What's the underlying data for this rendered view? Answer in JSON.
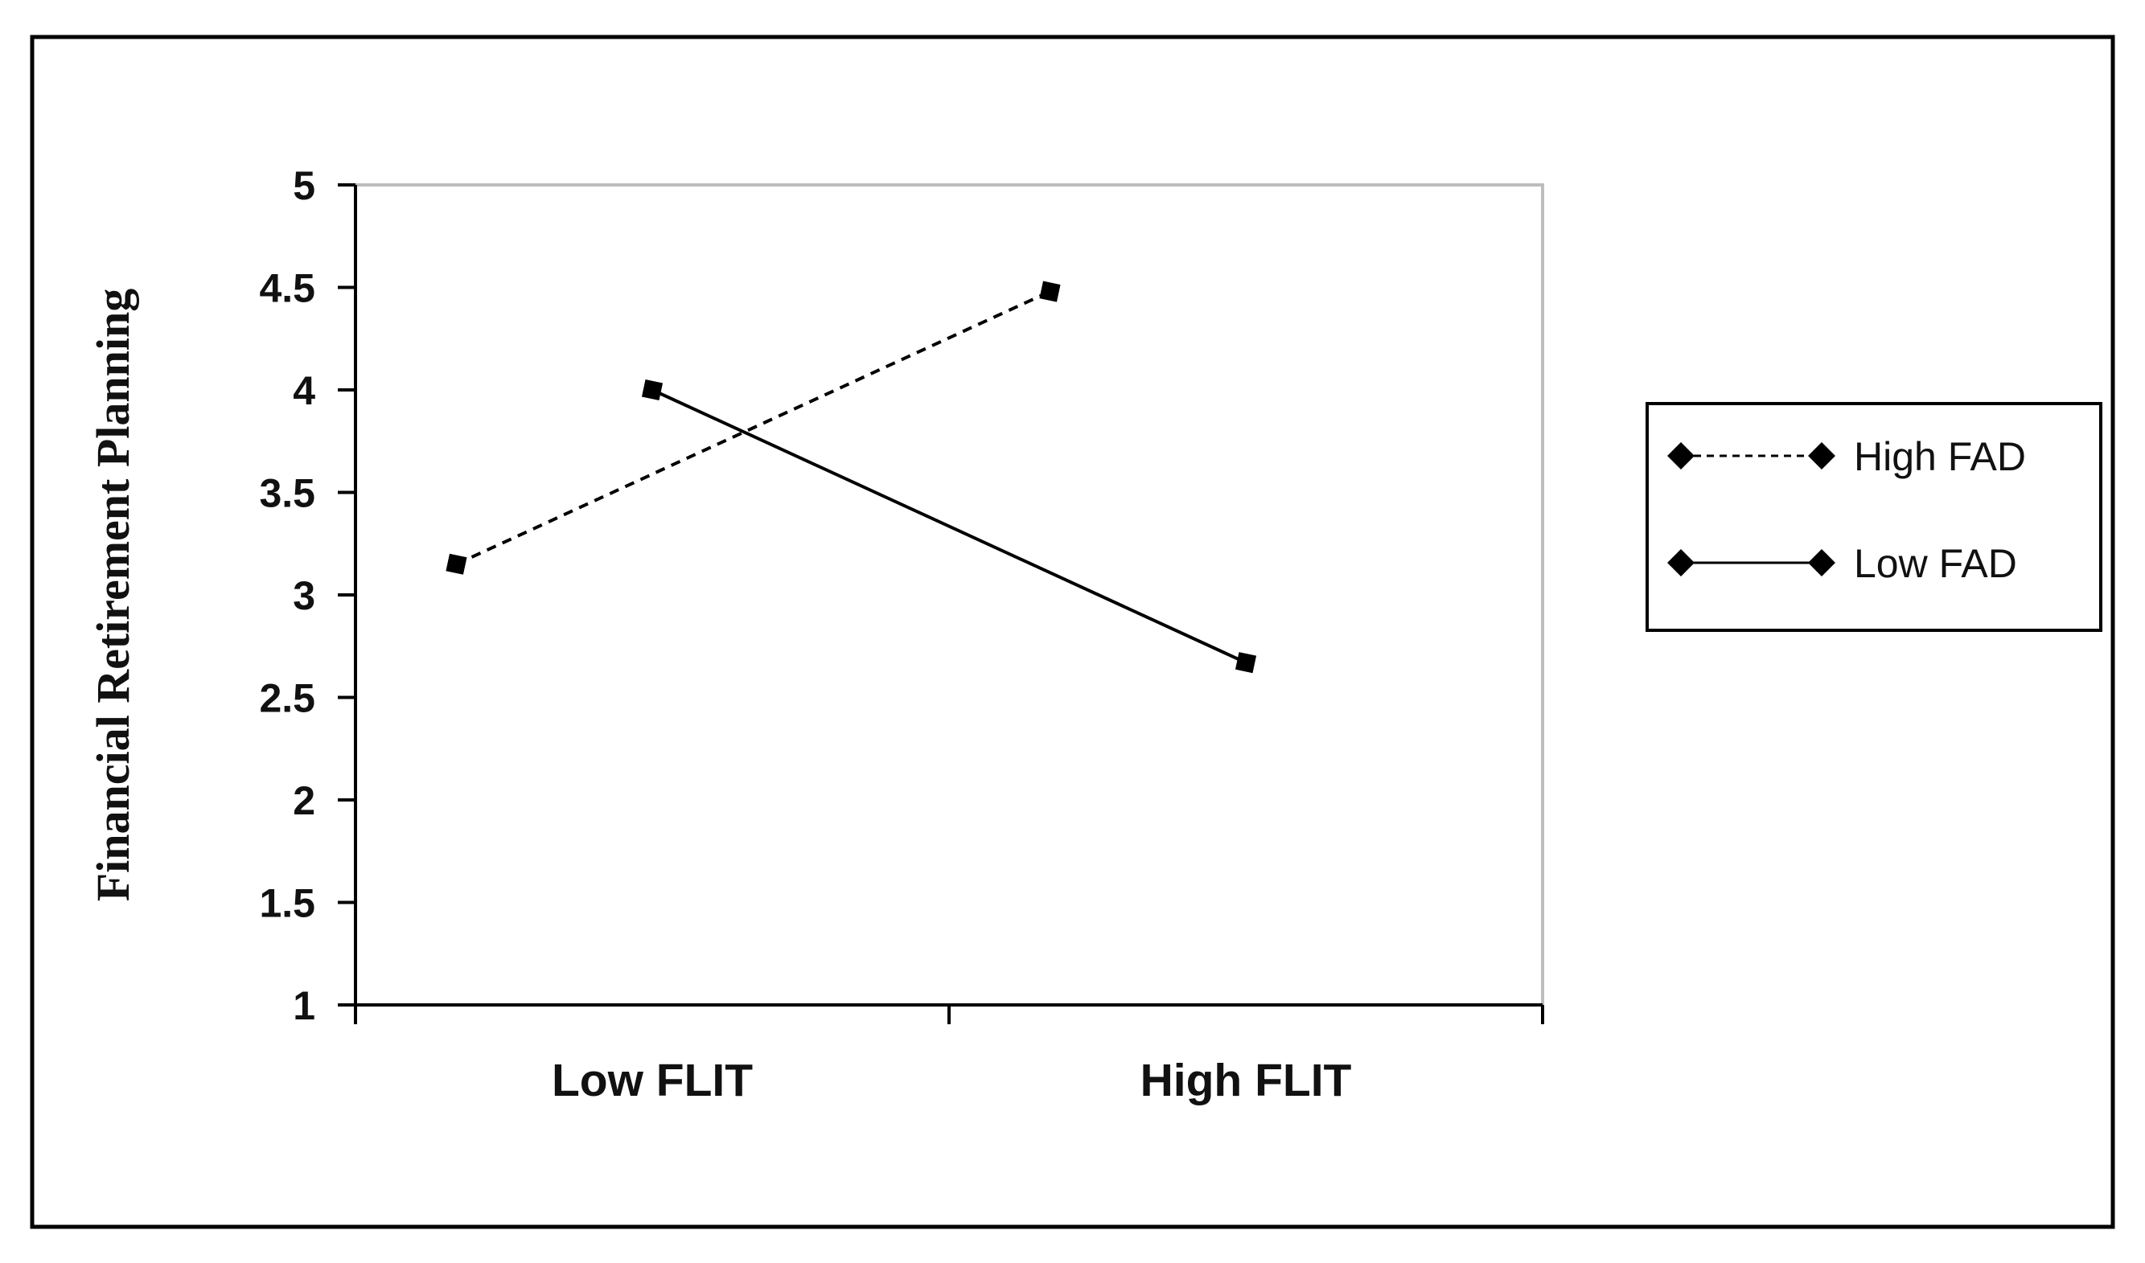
{
  "chart_data": {
    "type": "line",
    "title": "",
    "xlabel": "",
    "ylabel": "Financial Retirement Planning",
    "categories": [
      "Low FLIT",
      "High FLIT"
    ],
    "ylim": [
      1,
      5
    ],
    "yticks": [
      "1",
      "1.5",
      "2",
      "2.5",
      "3",
      "3.5",
      "4",
      "4.5",
      "5"
    ],
    "grid": false,
    "legend_position": "right",
    "series": [
      {
        "name": "High FAD",
        "values": [
          3.15,
          4.48
        ],
        "line_style": "dashed",
        "marker": "diamond",
        "color": "#000000"
      },
      {
        "name": "Low FAD",
        "values": [
          4.0,
          2.67
        ],
        "line_style": "solid",
        "marker": "diamond",
        "color": "#000000"
      }
    ]
  }
}
